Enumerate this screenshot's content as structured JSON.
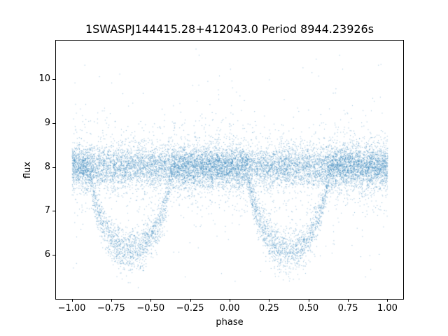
{
  "chart_data": {
    "type": "scatter",
    "title": "1SWASPJ144415.28+412043.0 Period 8944.23926s",
    "xlabel": "phase",
    "ylabel": "flux",
    "xlim": [
      -1.1,
      1.1
    ],
    "ylim": [
      5.0,
      10.88
    ],
    "x_ticks": {
      "values": [
        -1.0,
        -0.75,
        -0.5,
        -0.25,
        0.0,
        0.25,
        0.5,
        0.75,
        1.0
      ],
      "labels": [
        "−1.00",
        "−0.75",
        "−0.50",
        "−0.25",
        "0.00",
        "0.25",
        "0.50",
        "0.75",
        "1.00"
      ]
    },
    "y_ticks": {
      "values": [
        6,
        7,
        8,
        9,
        10
      ],
      "labels": [
        "6",
        "7",
        "8",
        "9",
        "10"
      ]
    },
    "grid": false,
    "legend": null,
    "marker_color": "#1f77b4",
    "marker_alpha": 0.5,
    "marker_size_px": 1,
    "model": {
      "description": "Phase-folded eclipsing-binary light curve: dense noisy band at flux ~8 across all phases, with two eclipse dips (one period apart) reaching flux ~6.1, plus sparse outliers up to ~10.6 and down to ~5.3.",
      "n_points": 16000,
      "seed": 42,
      "phase_range": [
        -1.0,
        1.0
      ],
      "band": {
        "center_flux": 8.02,
        "core_frac": 0.78,
        "core_sd": 0.22,
        "mid_frac": 0.17,
        "mid_sd": 0.45,
        "tail_frac": 0.045,
        "tail_sd": 0.85,
        "outlier_frac": 0.005,
        "outlier_range": [
          5.25,
          10.6
        ]
      },
      "eclipses": {
        "centers": [
          -0.63,
          0.37
        ],
        "half_width": 0.26,
        "depth": 1.92,
        "shape_exp": 0.65,
        "member_prob": 0.38,
        "sd_base": 0.16,
        "sd_depth_coeff": 0.05
      }
    }
  }
}
